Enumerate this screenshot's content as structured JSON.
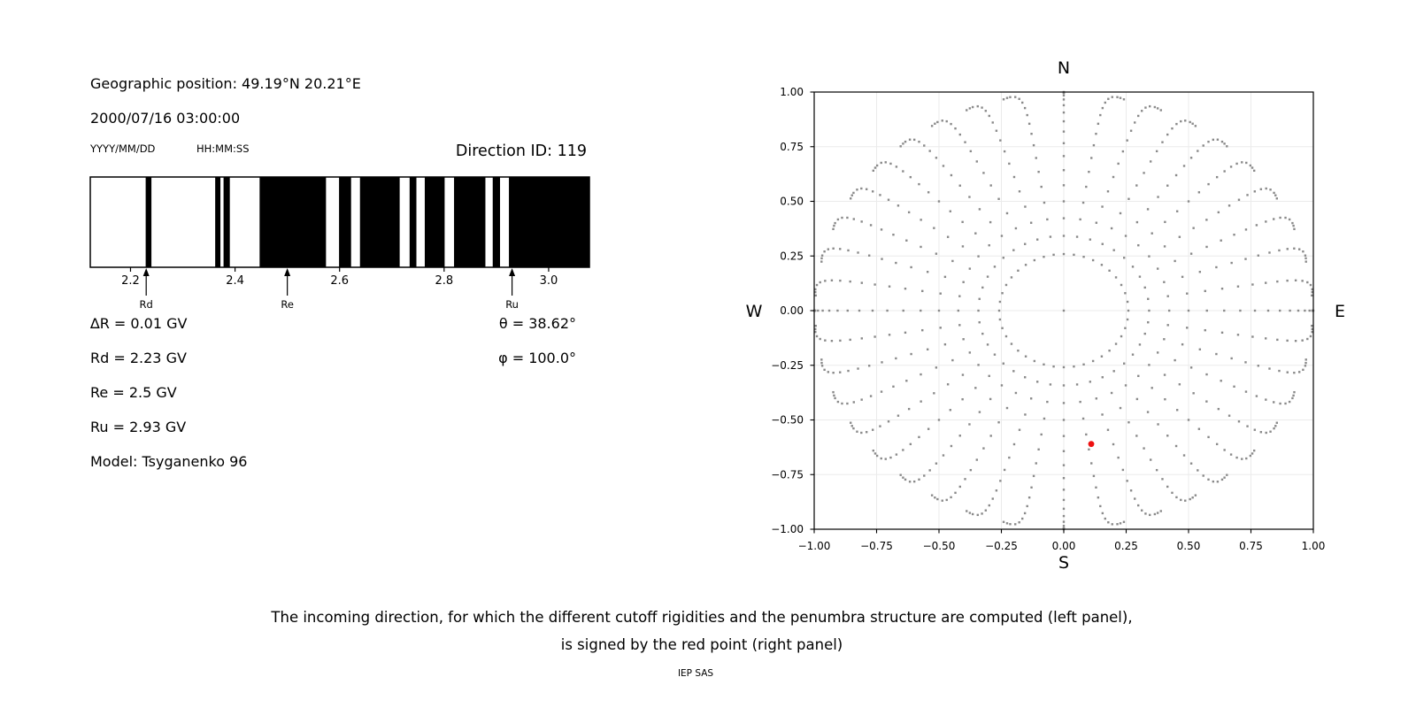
{
  "left_panel": {
    "geo_position": "Geographic position: 49.19°N 20.21°E",
    "datetime": "2000/07/16 03:00:00",
    "date_format": "YYYY/MM/DD",
    "time_format": "HH:MM:SS",
    "direction_id": "Direction ID: 119",
    "params_left": [
      "∆R = 0.01 GV",
      "Rd = 2.23 GV",
      "Re = 2.5 GV",
      "Ru = 2.93 GV",
      "Model: Tsyganenko 96"
    ],
    "params_right": [
      "θ = 38.62°",
      "φ = 100.0°"
    ]
  },
  "caption": {
    "line1": "The incoming direction, for which the different cutoff rigidities and the penumbra structure are computed (left panel),",
    "line2": "is signed by the red point (right panel)",
    "credit": "IEP SAS"
  },
  "chart_data": [
    {
      "type": "bar",
      "name": "penumbra-structure",
      "xlim": [
        2.123,
        3.078
      ],
      "xticks": [
        2.2,
        2.4,
        2.6,
        2.8,
        3.0
      ],
      "bar_color": "#000000",
      "background": "#ffffff",
      "black_intervals_gv": [
        [
          2.229,
          2.24
        ],
        [
          2.362,
          2.372
        ],
        [
          2.378,
          2.39
        ],
        [
          2.447,
          2.574
        ],
        [
          2.599,
          2.622
        ],
        [
          2.639,
          2.715
        ],
        [
          2.734,
          2.747
        ],
        [
          2.763,
          2.801
        ],
        [
          2.819,
          2.879
        ],
        [
          2.893,
          2.907
        ],
        [
          2.924,
          3.078
        ]
      ],
      "arrows": [
        {
          "label": "Rd",
          "x_gv": 2.23
        },
        {
          "label": "Re",
          "x_gv": 2.5
        },
        {
          "label": "Ru",
          "x_gv": 2.93
        }
      ]
    },
    {
      "type": "scatter",
      "name": "incoming-directions",
      "xlim": [
        -1.0,
        1.0
      ],
      "ylim": [
        -1.0,
        1.0
      ],
      "tick_values": [
        -1.0,
        -0.75,
        -0.5,
        -0.25,
        0.0,
        0.25,
        0.5,
        0.75,
        1.0
      ],
      "grid": true,
      "grid_color": "#ebebeb",
      "direction_labels": {
        "top": "N",
        "bottom": "S",
        "left": "W",
        "right": "E"
      },
      "dot_color": "#8a8a8a",
      "dot_size_px": 2.4,
      "center_dot": {
        "x": 0.0,
        "y": 0.0
      },
      "spoke_grid": {
        "spoke_count": 40,
        "azimuth_step_deg": 9,
        "theta_start_deg": 15,
        "theta_end_deg": 90,
        "theta_step_deg": 5,
        "tail_thetas_deg": [
          92.5,
          95
        ],
        "radius_rule": "r = sin(theta)",
        "tip_hook_max_deg": 5
      },
      "red_point": {
        "x": 0.11,
        "y": -0.61,
        "color": "#ee1111",
        "radius_px": 3.4
      }
    }
  ]
}
